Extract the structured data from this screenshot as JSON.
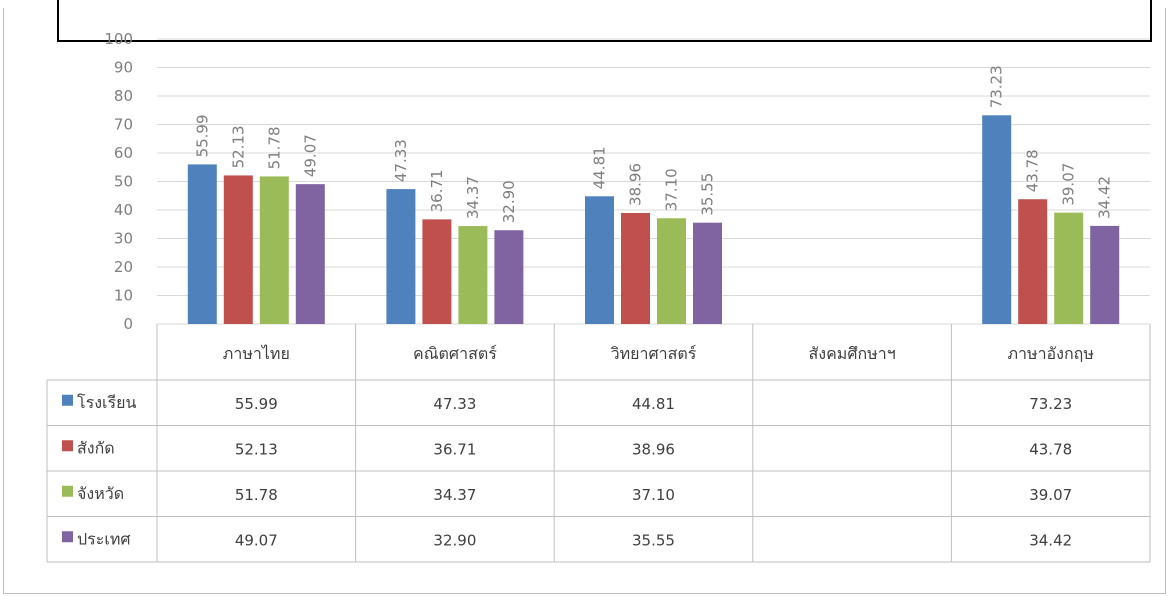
{
  "chart_data": {
    "type": "bar",
    "title": "",
    "xlabel": "",
    "ylabel": "",
    "ylim": [
      0,
      100
    ],
    "yticks": [
      0,
      10,
      20,
      30,
      40,
      50,
      60,
      70,
      80,
      90,
      100
    ],
    "grid": true,
    "legend": "data-table",
    "categories": [
      "ภาษาไทย",
      "คณิตศาสตร์",
      "วิทยาศาสตร์",
      "สังคมศึกษาฯ",
      "ภาษาอังกฤษ"
    ],
    "series": [
      {
        "name": "โรงเรียน",
        "color": "#4f81bd",
        "values": [
          55.99,
          47.33,
          44.81,
          null,
          73.23
        ],
        "labels": [
          "55.99",
          "47.33",
          "44.81",
          "",
          "73.23"
        ]
      },
      {
        "name": "สังกัด",
        "color": "#c0504d",
        "values": [
          52.13,
          36.71,
          38.96,
          null,
          43.78
        ],
        "labels": [
          "52.13",
          "36.71",
          "38.96",
          "",
          "43.78"
        ]
      },
      {
        "name": "จังหวัด",
        "color": "#9bbb59",
        "values": [
          51.78,
          34.37,
          37.1,
          null,
          39.07
        ],
        "labels": [
          "51.78",
          "34.37",
          "37.10",
          "",
          "39.07"
        ]
      },
      {
        "name": "ประเทศ",
        "color": "#8064a2",
        "values": [
          49.07,
          32.9,
          35.55,
          null,
          34.42
        ],
        "labels": [
          "49.07",
          "32.90",
          "35.55",
          "",
          "34.42"
        ]
      }
    ]
  }
}
